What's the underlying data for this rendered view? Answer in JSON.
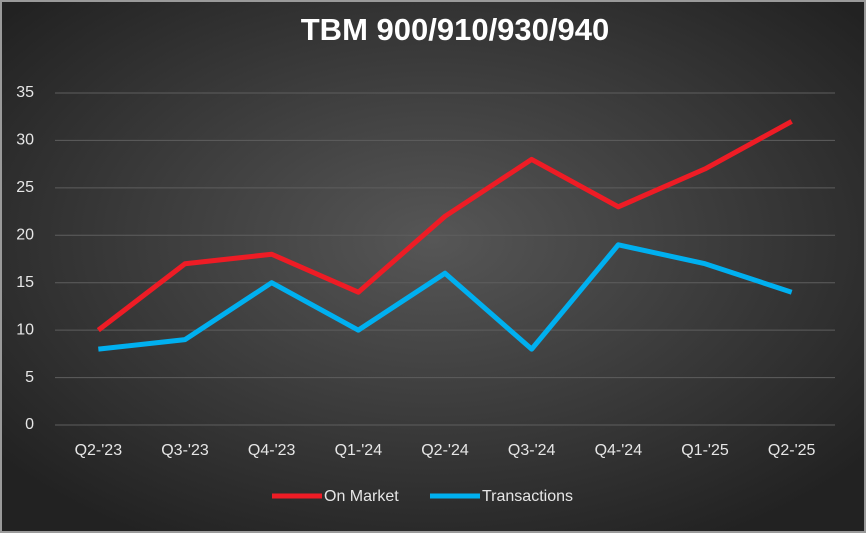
{
  "chart_data": {
    "type": "line",
    "title": "TBM 900/910/930/940",
    "categories": [
      "Q2-'23",
      "Q3-'23",
      "Q4-'23",
      "Q1-'24",
      "Q2-'24",
      "Q3-'24",
      "Q4-'24",
      "Q1-'25",
      "Q2-'25"
    ],
    "series": [
      {
        "name": "On Market",
        "color": "#ee1c25",
        "values": [
          10,
          17,
          18,
          14,
          22,
          28,
          23,
          27,
          32
        ]
      },
      {
        "name": "Transactions",
        "color": "#00b0f0",
        "values": [
          8,
          9,
          15,
          10,
          16,
          8,
          19,
          17,
          14
        ]
      }
    ],
    "ylim": [
      0,
      35
    ],
    "yticks": [
      0,
      5,
      10,
      15,
      20,
      25,
      30,
      35
    ],
    "grid": true,
    "legend": "bottom"
  }
}
